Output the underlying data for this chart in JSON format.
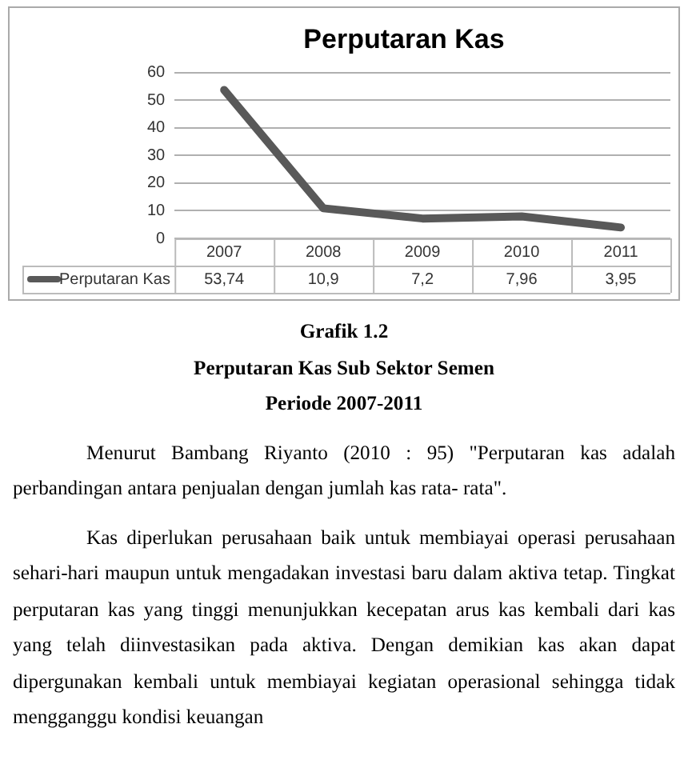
{
  "chart_data": {
    "type": "line",
    "title": "Perputaran Kas",
    "categories": [
      "2007",
      "2008",
      "2009",
      "2010",
      "2011"
    ],
    "series": [
      {
        "name": "Perputaran Kas",
        "color": "#595959",
        "values": [
          53.74,
          10.9,
          7.2,
          7.96,
          3.95
        ],
        "value_labels": [
          "53,74",
          "10,9",
          "7,2",
          "7,96",
          "3,95"
        ]
      }
    ],
    "ylim": [
      0,
      60
    ],
    "yticks": [
      0,
      10,
      20,
      30,
      40,
      50,
      60
    ],
    "grid": "y",
    "legend": "bottom",
    "marker": "none",
    "line_style": "solid",
    "annotations": [
      "Grafik 1.2",
      "Perputaran Kas Sub Sektor Semen",
      "Periode 2007-2011",
      "Menurut Bambang Riyanto (2010 : 95) \"Perputaran kas adalah perbandingan antara penjualan dengan jumlah kas rata- rata\".",
      "Kas diperlukan perusahaan baik  untuk membiayai operasi perusahaan sehari-hari maupun untuk mengadakan investasi baru dalam aktiva tetap. Tingkat perputaran kas yang tinggi menunjukkan kecepatan arus kas kembali dari kas yang telah diinvestasikan pada aktiva. Dengan demikian kas akan dapat dipergunakan kembali untuk membiayai kegiatan operasional sehingga tidak mengganggu kondisi keuangan"
    ]
  }
}
